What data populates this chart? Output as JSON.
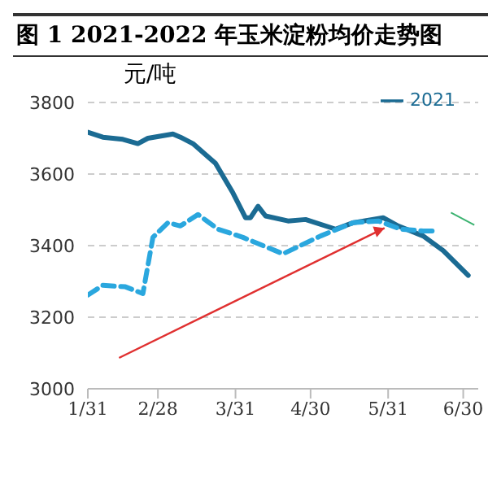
{
  "chart_data": {
    "type": "line",
    "title": "图 1 2021-2022 年玉米淀粉均价走势图",
    "ylabel": "元/吨",
    "series": [
      {
        "name": "2021",
        "color": "#1b6b93",
        "line_style": "solid",
        "x": [
          "--01-31",
          "--02-06",
          "--02-14",
          "--02-20",
          "--02-24",
          "--03-06",
          "--03-09",
          "--03-14",
          "--03-23",
          "--03-30",
          "--04-04",
          "--04-06",
          "--04-09",
          "--04-12",
          "--04-21",
          "--04-28",
          "--05-10",
          "--05-17",
          "--05-29",
          "--06-04",
          "--06-14",
          "--06-22",
          "--07-02"
        ],
        "values": [
          3717,
          3703,
          3697,
          3685,
          3700,
          3712,
          3703,
          3685,
          3630,
          3547,
          3478,
          3478,
          3510,
          3483,
          3469,
          3473,
          3446,
          3464,
          3478,
          3455,
          3427,
          3386,
          3317
        ]
      },
      {
        "color": "#2aa7de",
        "line_style": "dashed",
        "x": [
          "--01-31",
          "--02-06",
          "--02-15",
          "--02-22",
          "--02-26",
          "--03-04",
          "--03-09",
          "--03-16",
          "--03-24",
          "--04-03",
          "--04-19",
          "--05-04",
          "--05-17",
          "--05-27",
          "--06-05",
          "--06-14",
          "--06-20"
        ],
        "values": [
          3262,
          3289,
          3285,
          3266,
          3423,
          3464,
          3455,
          3487,
          3446,
          3423,
          3377,
          3427,
          3464,
          3469,
          3446,
          3441,
          3441
        ]
      }
    ],
    "xlim": [
      "--01-31",
      "--07-06"
    ],
    "xticks": [
      {
        "value": "--01-31",
        "label": "1/31"
      },
      {
        "value": "--02-28",
        "label": "2/28"
      },
      {
        "value": "--03-31",
        "label": "3/31"
      },
      {
        "value": "--04-30",
        "label": "4/30"
      },
      {
        "value": "--05-31",
        "label": "5/31"
      },
      {
        "value": "--06-30",
        "label": "6/30"
      }
    ],
    "ylim": [
      3000,
      3800
    ],
    "yticks": [
      3000,
      3200,
      3400,
      3600,
      3800
    ],
    "grid": "y",
    "legend": "top right",
    "marker": "none"
  }
}
